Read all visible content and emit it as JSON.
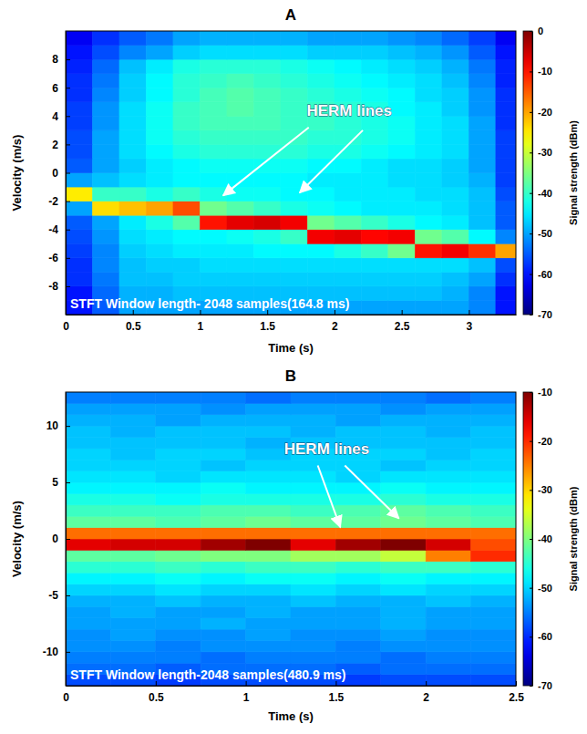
{
  "chart_data": [
    {
      "type": "heatmap",
      "title": "A",
      "x_label": "Time (s)",
      "y_label": "Velocity (m/s)",
      "xlim": [
        0,
        3.35
      ],
      "ylim": [
        -10,
        10
      ],
      "xticks": [
        0,
        0.5,
        1,
        1.5,
        2,
        2.5,
        3
      ],
      "yticks": [
        -8,
        -6,
        -4,
        -2,
        0,
        2,
        4,
        6,
        8
      ],
      "x": [
        0.1,
        0.3,
        0.5,
        0.7,
        0.9,
        1.1,
        1.3,
        1.5,
        1.7,
        1.9,
        2.1,
        2.3,
        2.5,
        2.7,
        2.9,
        3.1,
        3.3
      ],
      "y": [
        -9.5,
        -8.5,
        -7.5,
        -6.5,
        -5.5,
        -4.5,
        -3.5,
        -2.5,
        -1.5,
        -0.5,
        0.5,
        1.5,
        2.5,
        3.5,
        4.5,
        5.5,
        6.5,
        7.5,
        8.5,
        9.5
      ],
      "cells": [
        [
          -60,
          -55,
          -50,
          -50,
          -50,
          -50,
          -50,
          -50,
          -50,
          -50,
          -50,
          -50,
          -50,
          -50,
          -50,
          -52,
          -60
        ],
        [
          -60,
          -54,
          -49,
          -49,
          -48,
          -48,
          -48,
          -48,
          -48,
          -48,
          -48,
          -48,
          -48,
          -48,
          -49,
          -52,
          -60
        ],
        [
          -58,
          -53,
          -48,
          -48,
          -47,
          -47,
          -47,
          -47,
          -47,
          -47,
          -47,
          -47,
          -47,
          -47,
          -48,
          -50,
          -58
        ],
        [
          -58,
          -52,
          -48,
          -47,
          -47,
          -46,
          -46,
          -46,
          -46,
          -46,
          -46,
          -46,
          -46,
          -46,
          -46,
          -48,
          -56
        ],
        [
          -57,
          -52,
          -47,
          -46,
          -45,
          -45,
          -45,
          -44,
          -44,
          -44,
          -42,
          -40,
          -36,
          -10,
          -8,
          -12,
          -20
        ],
        [
          -56,
          -51,
          -46,
          -45,
          -44,
          -44,
          -43,
          -42,
          -40,
          -8,
          -7,
          -9,
          -8,
          -36,
          -38,
          -44,
          -52
        ],
        [
          -55,
          -50,
          -45,
          -42,
          -38,
          -10,
          -7,
          -6,
          -8,
          -36,
          -38,
          -40,
          -42,
          -44,
          -45,
          -48,
          -55
        ],
        [
          -50,
          -24,
          -22,
          -20,
          -14,
          -36,
          -38,
          -40,
          -42,
          -43,
          -44,
          -45,
          -45,
          -45,
          -46,
          -48,
          -55
        ],
        [
          -25,
          -40,
          -40,
          -42,
          -40,
          -42,
          -43,
          -43,
          -44,
          -44,
          -45,
          -45,
          -45,
          -46,
          -46,
          -48,
          -56
        ],
        [
          -50,
          -48,
          -46,
          -45,
          -44,
          -44,
          -44,
          -44,
          -44,
          -45,
          -45,
          -45,
          -46,
          -46,
          -47,
          -49,
          -57
        ],
        [
          -55,
          -50,
          -47,
          -45,
          -44,
          -43,
          -43,
          -43,
          -43,
          -44,
          -44,
          -45,
          -46,
          -46,
          -47,
          -50,
          -57
        ],
        [
          -56,
          -50,
          -46,
          -44,
          -42,
          -41,
          -41,
          -41,
          -41,
          -42,
          -42,
          -43,
          -44,
          -45,
          -46,
          -50,
          -57
        ],
        [
          -56,
          -50,
          -46,
          -43,
          -41,
          -40,
          -40,
          -40,
          -40,
          -41,
          -41,
          -42,
          -43,
          -45,
          -46,
          -50,
          -57
        ],
        [
          -57,
          -51,
          -46,
          -43,
          -40,
          -39,
          -39,
          -39,
          -40,
          -40,
          -41,
          -42,
          -43,
          -45,
          -46,
          -50,
          -58
        ],
        [
          -57,
          -51,
          -46,
          -43,
          -40,
          -39,
          -38,
          -39,
          -40,
          -40,
          -41,
          -42,
          -44,
          -45,
          -47,
          -51,
          -58
        ],
        [
          -58,
          -52,
          -47,
          -44,
          -41,
          -39,
          -38,
          -39,
          -40,
          -41,
          -42,
          -43,
          -44,
          -46,
          -47,
          -51,
          -58
        ],
        [
          -58,
          -53,
          -47,
          -44,
          -41,
          -40,
          -39,
          -40,
          -41,
          -42,
          -43,
          -44,
          -45,
          -46,
          -48,
          -52,
          -59
        ],
        [
          -59,
          -54,
          -48,
          -45,
          -42,
          -41,
          -41,
          -41,
          -42,
          -43,
          -44,
          -45,
          -46,
          -47,
          -49,
          -53,
          -59
        ],
        [
          -60,
          -56,
          -52,
          -50,
          -47,
          -46,
          -46,
          -46,
          -46,
          -47,
          -47,
          -47,
          -48,
          -49,
          -51,
          -55,
          -60
        ],
        [
          -62,
          -58,
          -55,
          -53,
          -50,
          -49,
          -49,
          -49,
          -49,
          -50,
          -50,
          -50,
          -51,
          -52,
          -54,
          -57,
          -62
        ]
      ],
      "colorbar_range": [
        -70,
        0
      ],
      "colorbar_ticks": [
        -70,
        -60,
        -50,
        -40,
        -30,
        -20,
        -10,
        0
      ],
      "colorbar_label": "Signal strength (dBm)",
      "annotations": [
        "HERM lines",
        "STFT Window length- 2048 samples(164.8 ms)"
      ]
    },
    {
      "type": "heatmap",
      "title": "B",
      "x_label": "Time (s)",
      "y_label": "Velocity (m/s)",
      "xlim": [
        0,
        2.5
      ],
      "ylim": [
        -13,
        13
      ],
      "xticks": [
        0,
        0.5,
        1,
        1.5,
        2,
        2.5
      ],
      "yticks": [
        -10,
        -5,
        0,
        5,
        10
      ],
      "x": [
        0.125,
        0.375,
        0.625,
        0.875,
        1.125,
        1.375,
        1.625,
        1.875,
        2.125,
        2.375
      ],
      "y": [
        -12.5,
        -11.5,
        -10.5,
        -9.5,
        -8.5,
        -7.5,
        -6.5,
        -5.5,
        -4.5,
        -3.5,
        -2.5,
        -1.5,
        -0.5,
        0.5,
        1.5,
        2.5,
        3.5,
        4.5,
        5.5,
        6.5,
        7.5,
        8.5,
        9.5,
        10.5,
        11.5,
        12.5
      ],
      "cells": [
        [
          -58,
          -58,
          -59,
          -58,
          -58,
          -58,
          -59,
          -58,
          -58,
          -58
        ],
        [
          -56,
          -56,
          -57,
          -56,
          -56,
          -56,
          -57,
          -56,
          -56,
          -56
        ],
        [
          -55,
          -55,
          -55,
          -56,
          -55,
          -55,
          -55,
          -56,
          -55,
          -55
        ],
        [
          -54,
          -54,
          -55,
          -54,
          -54,
          -54,
          -55,
          -54,
          -54,
          -54
        ],
        [
          -54,
          -53,
          -54,
          -54,
          -53,
          -54,
          -54,
          -53,
          -54,
          -54
        ],
        [
          -53,
          -53,
          -53,
          -52,
          -53,
          -53,
          -53,
          -52,
          -53,
          -53
        ],
        [
          -53,
          -52,
          -53,
          -53,
          -52,
          -53,
          -53,
          -52,
          -53,
          -53
        ],
        [
          -52,
          -52,
          -51,
          -52,
          -52,
          -51,
          -52,
          -52,
          -51,
          -52
        ],
        [
          -50,
          -50,
          -49,
          -50,
          -50,
          -49,
          -50,
          -49,
          -50,
          -50
        ],
        [
          -48,
          -48,
          -47,
          -48,
          -47,
          -47,
          -48,
          -47,
          -48,
          -48
        ],
        [
          -45,
          -45,
          -44,
          -45,
          -44,
          -44,
          -45,
          -44,
          -44,
          -45
        ],
        [
          -42,
          -42,
          -41,
          -40,
          -40,
          -38,
          -38,
          -36,
          -25,
          -20
        ],
        [
          -16,
          -15,
          -15,
          -12,
          -10,
          -16,
          -12,
          -10,
          -15,
          -22
        ],
        [
          -24,
          -24,
          -24,
          -24,
          -24,
          -24,
          -24,
          -24,
          -24,
          -24
        ],
        [
          -42,
          -42,
          -43,
          -42,
          -41,
          -42,
          -42,
          -41,
          -42,
          -43
        ],
        [
          -44,
          -44,
          -44,
          -43,
          -43,
          -44,
          -43,
          -42,
          -43,
          -44
        ],
        [
          -46,
          -46,
          -47,
          -46,
          -46,
          -46,
          -46,
          -45,
          -46,
          -46
        ],
        [
          -48,
          -48,
          -48,
          -47,
          -48,
          -48,
          -48,
          -47,
          -48,
          -48
        ],
        [
          -49,
          -49,
          -50,
          -49,
          -49,
          -49,
          -50,
          -49,
          -49,
          -49
        ],
        [
          -50,
          -50,
          -50,
          -51,
          -50,
          -50,
          -50,
          -51,
          -50,
          -50
        ],
        [
          -50,
          -51,
          -50,
          -50,
          -51,
          -50,
          -50,
          -50,
          -51,
          -50
        ],
        [
          -51,
          -51,
          -51,
          -51,
          -52,
          -51,
          -51,
          -51,
          -51,
          -51
        ],
        [
          -51,
          -52,
          -51,
          -51,
          -51,
          -52,
          -51,
          -51,
          -52,
          -51
        ],
        [
          -52,
          -52,
          -53,
          -52,
          -52,
          -52,
          -53,
          -52,
          -52,
          -52
        ],
        [
          -53,
          -53,
          -53,
          -54,
          -53,
          -53,
          -53,
          -54,
          -53,
          -53
        ],
        [
          -55,
          -55,
          -55,
          -55,
          -56,
          -55,
          -55,
          -55,
          -56,
          -55
        ]
      ],
      "colorbar_range": [
        -70,
        -10
      ],
      "colorbar_ticks": [
        -70,
        -60,
        -50,
        -40,
        -30,
        -20,
        -10
      ],
      "colorbar_label": "Signal strength (dBm)",
      "annotations": [
        "HERM lines",
        "STFT Window length-2048 samples(480.9 ms)"
      ]
    }
  ]
}
